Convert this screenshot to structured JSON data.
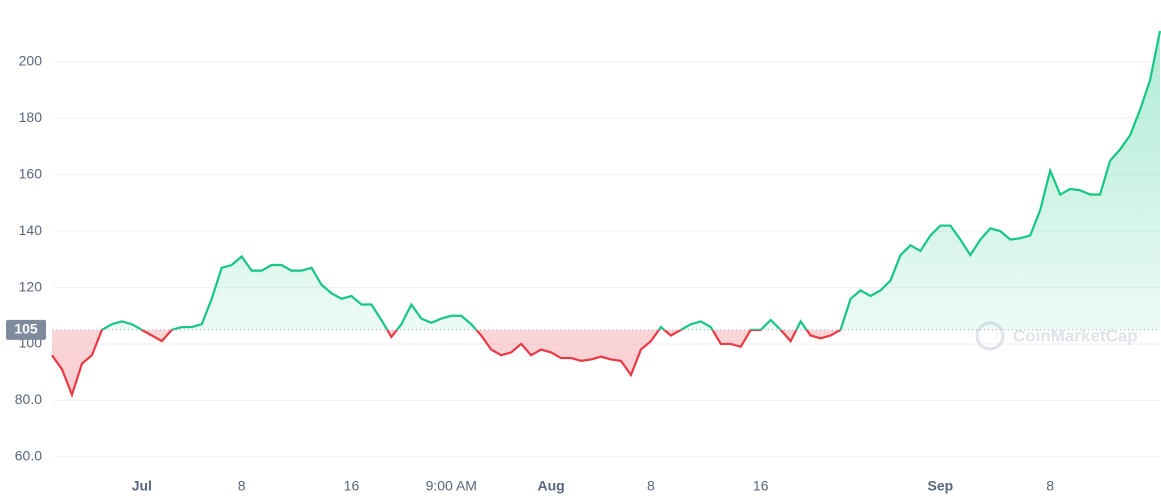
{
  "chart_data": {
    "type": "line",
    "categories": [
      null,
      null,
      null,
      null,
      null,
      null,
      null,
      null,
      null,
      "Jul",
      null,
      null,
      null,
      null,
      null,
      null,
      null,
      null,
      null,
      "8",
      null,
      null,
      null,
      null,
      null,
      null,
      null,
      null,
      null,
      null,
      "16",
      null,
      null,
      null,
      null,
      null,
      null,
      null,
      null,
      null,
      "9:00 AM",
      null,
      null,
      null,
      null,
      null,
      null,
      null,
      null,
      null,
      "Aug",
      null,
      null,
      null,
      null,
      null,
      null,
      null,
      null,
      null,
      "8",
      null,
      null,
      null,
      null,
      null,
      null,
      null,
      null,
      null,
      null,
      "16",
      null,
      null,
      null,
      null,
      null,
      null,
      null,
      null,
      null,
      null,
      null,
      null,
      null,
      null,
      null,
      null,
      null,
      "Sep",
      null,
      null,
      null,
      null,
      null,
      null,
      null,
      null,
      null,
      null,
      "8",
      null,
      null,
      null,
      null,
      null,
      null,
      null,
      null,
      null,
      null,
      null
    ],
    "series": [
      {
        "color": "#16c784",
        "below_color": "#ea3943",
        "values": [
          96,
          91,
          82,
          93,
          96,
          105,
          107,
          108,
          107,
          105,
          103,
          101,
          105,
          106,
          106,
          107,
          116,
          127,
          128,
          131,
          126,
          126,
          128,
          128,
          126,
          126,
          127,
          121,
          118,
          116,
          117,
          114,
          114,
          108.5,
          102.5,
          107,
          114,
          109,
          107.5,
          109,
          110,
          110,
          107,
          103,
          98,
          96,
          97,
          100,
          96,
          98,
          97,
          95,
          95,
          94,
          94.5,
          95.5,
          94.5,
          94,
          89,
          98,
          101,
          106,
          103,
          105,
          107,
          108,
          106,
          100,
          100,
          99,
          105,
          105,
          108.5,
          105,
          101,
          108,
          103,
          102,
          103,
          105,
          116,
          119,
          117,
          119,
          122.5,
          131.5,
          135,
          133,
          138.5,
          142,
          142,
          137,
          131.5,
          137,
          141,
          140,
          137,
          137.5,
          138.5,
          147.5,
          161.5,
          153,
          155,
          154.5,
          153,
          153,
          165,
          169,
          174,
          183,
          193.5,
          211
        ]
      }
    ],
    "baseline": 105,
    "watermark": "CoinMarketCap",
    "ylim": [
      56,
      222
    ],
    "yticks": [
      {
        "value": 60,
        "label": "60.0"
      },
      {
        "value": 80,
        "label": "80.0"
      },
      100,
      120,
      140,
      160,
      180,
      200
    ],
    "grid": true
  }
}
